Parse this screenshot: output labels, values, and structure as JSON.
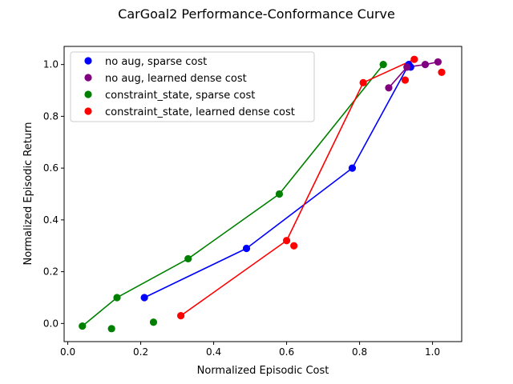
{
  "chart_data": {
    "type": "scatter",
    "title": "CarGoal2 Performance-Conformance Curve",
    "xlabel": "Normalized Episodic Cost",
    "ylabel": "Normalized Episodic Return",
    "xlim": [
      -0.01,
      1.08
    ],
    "ylim": [
      -0.07,
      1.07
    ],
    "xticks": [
      0.0,
      0.2,
      0.4,
      0.6,
      0.8,
      1.0
    ],
    "xtick_labels": [
      "0.0",
      "0.2",
      "0.4",
      "0.6",
      "0.8",
      "1.0"
    ],
    "yticks": [
      0.0,
      0.2,
      0.4,
      0.6,
      0.8,
      1.0
    ],
    "ytick_labels": [
      "0.0",
      "0.2",
      "0.4",
      "0.6",
      "0.8",
      "1.0"
    ],
    "grid": false,
    "legend_position": "upper-left",
    "series": [
      {
        "name": "no aug, sparse cost",
        "color": "#0000ff",
        "points": [
          [
            0.21,
            0.1
          ],
          [
            0.49,
            0.29
          ],
          [
            0.78,
            0.6
          ],
          [
            0.94,
            0.99
          ],
          [
            0.935,
            1.0
          ]
        ],
        "frontier": [
          [
            0.21,
            0.1
          ],
          [
            0.49,
            0.29
          ],
          [
            0.78,
            0.6
          ],
          [
            0.935,
            1.0
          ]
        ]
      },
      {
        "name": "no aug, learned dense cost",
        "color": "#800080",
        "points": [
          [
            0.88,
            0.91
          ],
          [
            0.93,
            0.99
          ],
          [
            0.98,
            1.0
          ],
          [
            1.015,
            1.01
          ]
        ],
        "frontier": [
          [
            0.88,
            0.91
          ],
          [
            0.93,
            0.99
          ],
          [
            0.98,
            1.0
          ],
          [
            1.015,
            1.01
          ]
        ]
      },
      {
        "name": "constraint_state, sparse cost",
        "color": "#008000",
        "points": [
          [
            0.04,
            -0.01
          ],
          [
            0.12,
            -0.02
          ],
          [
            0.135,
            0.1
          ],
          [
            0.235,
            0.005
          ],
          [
            0.33,
            0.25
          ],
          [
            0.58,
            0.5
          ],
          [
            0.865,
            1.0
          ]
        ],
        "frontier": [
          [
            0.04,
            -0.01
          ],
          [
            0.135,
            0.1
          ],
          [
            0.33,
            0.25
          ],
          [
            0.58,
            0.5
          ],
          [
            0.865,
            1.0
          ]
        ]
      },
      {
        "name": "constraint_state, learned dense cost",
        "color": "#ff0000",
        "points": [
          [
            0.31,
            0.03
          ],
          [
            0.6,
            0.32
          ],
          [
            0.62,
            0.3
          ],
          [
            0.81,
            0.93
          ],
          [
            0.925,
            0.94
          ],
          [
            0.95,
            1.02
          ],
          [
            1.025,
            0.97
          ]
        ],
        "frontier": [
          [
            0.31,
            0.03
          ],
          [
            0.6,
            0.32
          ],
          [
            0.81,
            0.93
          ],
          [
            0.95,
            1.02
          ]
        ]
      }
    ]
  }
}
